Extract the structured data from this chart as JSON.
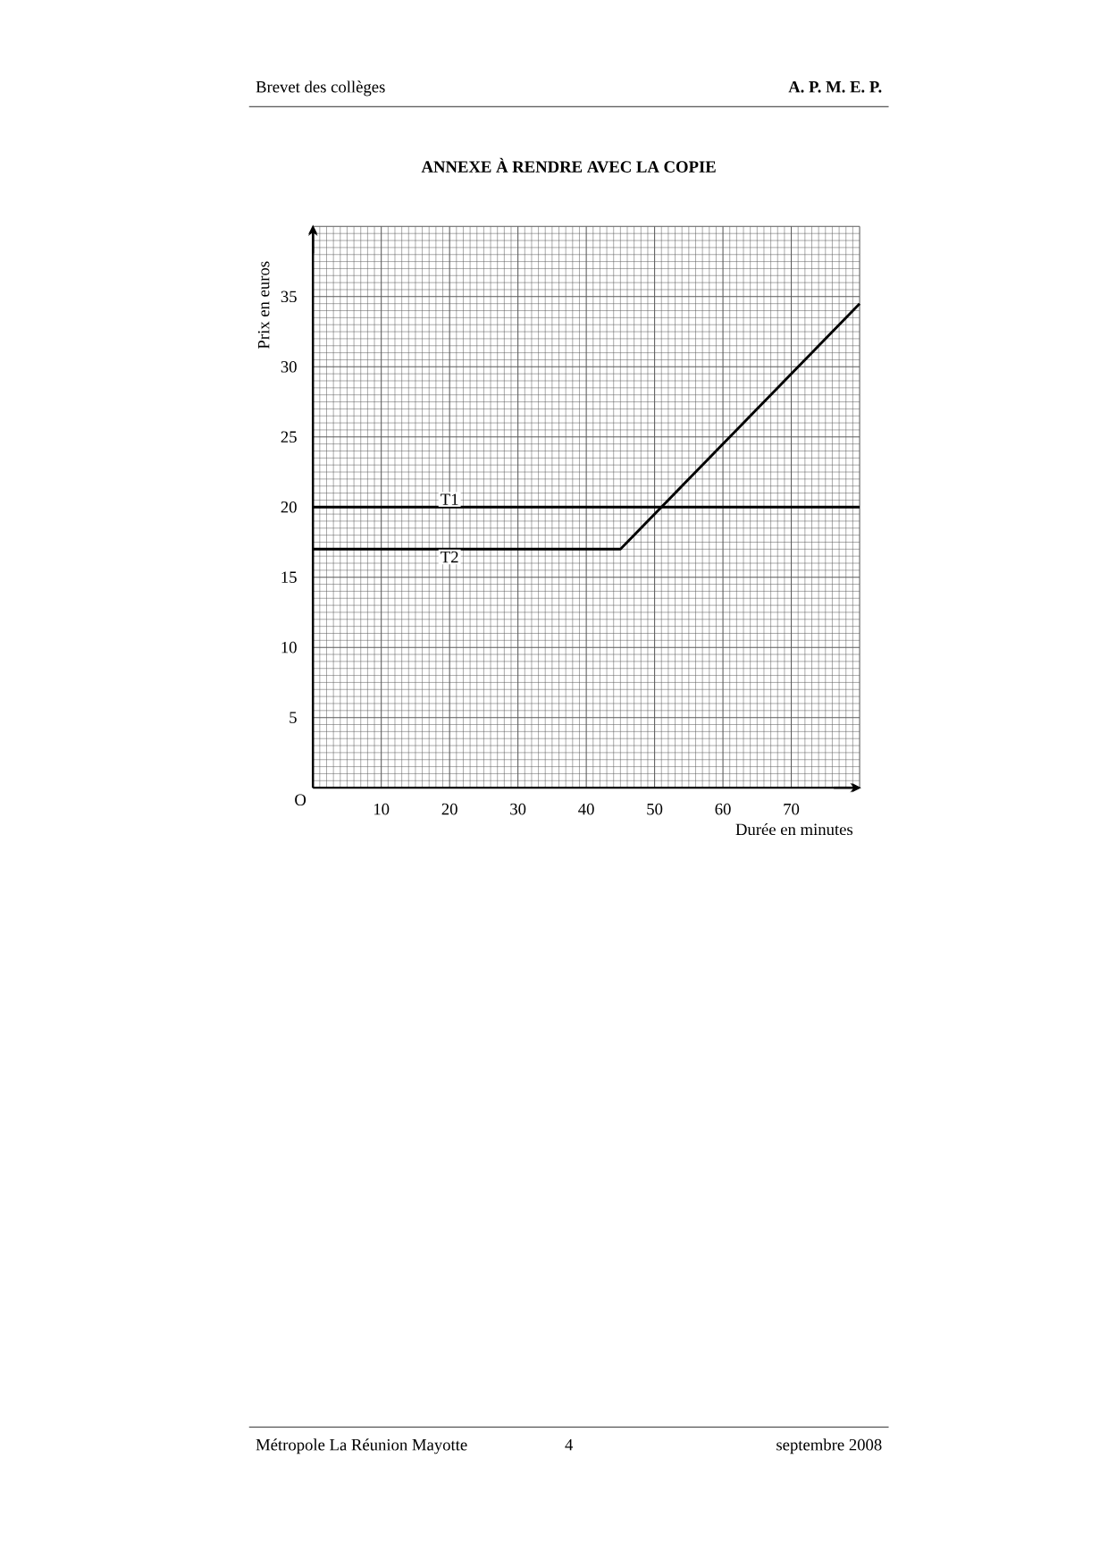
{
  "chart_data": {
    "type": "line",
    "title": "ANNEXE À RENDRE AVEC LA COPIE",
    "xlabel": "Durée en minutes",
    "ylabel": "Prix en euros",
    "series": [
      {
        "name": "T1",
        "color": "#000000",
        "x": [
          0,
          80
        ],
        "values": [
          20,
          20
        ]
      },
      {
        "name": "T2",
        "color": "#000000",
        "x": [
          0,
          45,
          80
        ],
        "values": [
          17,
          17,
          34.5
        ]
      }
    ],
    "xlim": [
      0,
      80
    ],
    "ylim": [
      0,
      40
    ],
    "xticks": [
      {
        "value": 0,
        "label": null
      },
      10,
      20,
      30,
      40,
      50,
      60,
      70,
      {
        "value": 80,
        "label": null
      }
    ],
    "yticks": [
      {
        "value": 0,
        "label": null
      },
      5,
      10,
      15,
      20,
      25,
      30,
      35,
      {
        "value": 40,
        "label": null
      }
    ],
    "grid": true,
    "marker": "none",
    "line_style": "solid",
    "annotations": [
      "Brevet des collèges",
      "A. P. M. E. P.",
      "O",
      "Métropole La Réunion Mayotte",
      "4",
      "septembre 2008"
    ]
  }
}
